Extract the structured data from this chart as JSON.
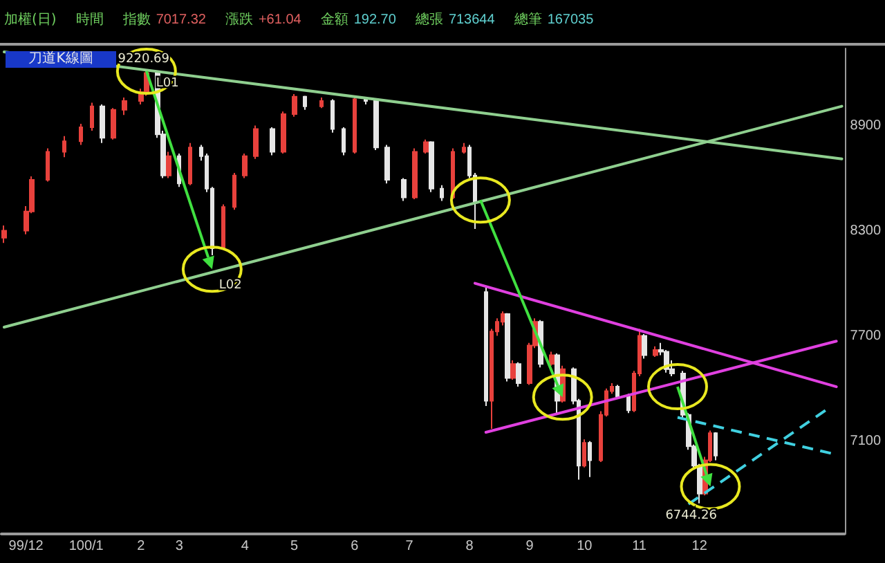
{
  "chart_data": {
    "type": "candlestick",
    "title": "刀道K線圖",
    "annotations": [
      "加權(日)",
      "時間",
      "指數 7017.32",
      "漲跌 +61.04",
      "金額 192.70",
      "總張 713644",
      "總筆 167035",
      {
        "text": "L01",
        "y": 9210
      },
      {
        "text": "L02",
        "y": 8080
      },
      {
        "text": "9220.69",
        "y": 9220.69
      },
      {
        "text": "6744.26",
        "y": 6744.26
      }
    ],
    "categories": [
      null,
      null,
      null,
      null,
      "99/12",
      null,
      null,
      null,
      null,
      null,
      null,
      null,
      null,
      null,
      null,
      "100/1",
      null,
      null,
      null,
      null,
      null,
      null,
      null,
      null,
      null,
      "2",
      null,
      null,
      null,
      null,
      null,
      null,
      "3",
      null,
      null,
      null,
      null,
      null,
      null,
      null,
      null,
      null,
      null,
      null,
      "4",
      null,
      null,
      null,
      null,
      null,
      null,
      null,
      null,
      "5",
      null,
      null,
      null,
      null,
      null,
      null,
      null,
      null,
      null,
      null,
      "6",
      null,
      null,
      null,
      null,
      null,
      null,
      null,
      null,
      null,
      "7",
      null,
      null,
      null,
      null,
      null,
      null,
      null,
      null,
      null,
      null,
      "8",
      null,
      null,
      null,
      null,
      null,
      null,
      null,
      null,
      null,
      null,
      "9",
      null,
      null,
      null,
      null,
      null,
      null,
      null,
      null,
      null,
      "10",
      null,
      null,
      null,
      null,
      null,
      null,
      null,
      null,
      null,
      "11",
      null,
      null,
      null,
      null,
      null,
      null,
      null,
      null,
      null,
      null,
      "12",
      null,
      null,
      null,
      null,
      null,
      null,
      null,
      null,
      null,
      null,
      null,
      null,
      null,
      null,
      null,
      null,
      null,
      null,
      null,
      null,
      null,
      null,
      null,
      null,
      null,
      null
    ],
    "ohlc": [
      [
        8260,
        8330,
        8230,
        8300
      ],
      null,
      null,
      null,
      [
        8300,
        8440,
        8280,
        8410
      ],
      [
        8410,
        8610,
        8400,
        8590
      ],
      null,
      null,
      [
        8590,
        8770,
        8580,
        8750
      ],
      null,
      null,
      [
        8750,
        8840,
        8720,
        8810
      ],
      null,
      null,
      [
        8810,
        8910,
        8790,
        8890
      ],
      null,
      [
        8890,
        9030,
        8870,
        9010
      ],
      null,
      [
        9010,
        9020,
        8800,
        8830
      ],
      null,
      [
        8830,
        9000,
        8820,
        8990
      ],
      null,
      [
        8990,
        9060,
        8960,
        9040
      ],
      null,
      null,
      [
        9040,
        9110,
        9020,
        9090
      ],
      [
        9090,
        9220.69,
        9070,
        9200
      ],
      null,
      [
        9200,
        9210,
        8830,
        8850
      ],
      [
        8850,
        8870,
        8600,
        8615
      ],
      [
        8615,
        8750,
        8600,
        8725
      ],
      null,
      [
        8725,
        8740,
        8550,
        8570
      ],
      null,
      [
        8570,
        8800,
        8560,
        8775
      ],
      null,
      [
        8775,
        8790,
        8700,
        8725
      ],
      [
        8725,
        8740,
        8520,
        8540
      ],
      [
        8540,
        8550,
        8160,
        8200
      ],
      null,
      [
        8200,
        8450,
        8190,
        8435
      ],
      null,
      [
        8435,
        8630,
        8420,
        8615
      ],
      null,
      [
        8615,
        8740,
        8600,
        8725
      ],
      null,
      [
        8725,
        8900,
        8710,
        8880
      ],
      null,
      null,
      [
        8880,
        8890,
        8730,
        8750
      ],
      null,
      [
        8750,
        8980,
        8740,
        8965
      ],
      null,
      [
        8965,
        9080,
        8950,
        9065
      ],
      null,
      [
        9065,
        9070,
        8990,
        9010
      ],
      null,
      null,
      [
        9010,
        9060,
        9000,
        9040
      ],
      null,
      [
        9040,
        9050,
        8860,
        8880
      ],
      null,
      [
        8880,
        8890,
        8730,
        8750
      ],
      null,
      [
        8750,
        9070,
        8740,
        9050
      ],
      null,
      [
        9050,
        9060,
        9020,
        9040
      ],
      null,
      [
        9040,
        9050,
        8760,
        8775
      ],
      null,
      [
        8775,
        8790,
        8570,
        8590
      ],
      null,
      null,
      [
        8590,
        8600,
        8470,
        8490
      ],
      null,
      [
        8490,
        8770,
        8480,
        8750
      ],
      null,
      [
        8750,
        8820,
        8740,
        8805
      ],
      [
        8805,
        8810,
        8520,
        8540
      ],
      null,
      [
        8540,
        8560,
        8470,
        8490
      ],
      null,
      [
        8490,
        8770,
        8480,
        8750
      ],
      null,
      [
        8750,
        8800,
        8740,
        8775
      ],
      [
        8775,
        8790,
        8600,
        8615
      ],
      [
        8615,
        8630,
        8310,
        8460
      ],
      null,
      [
        7950,
        7975,
        7300,
        7330
      ],
      [
        7330,
        7740,
        7170,
        7725
      ],
      [
        7725,
        7800,
        7700,
        7780
      ],
      [
        7780,
        7840,
        7760,
        7825
      ],
      [
        7825,
        7830,
        7440,
        7460
      ],
      [
        7460,
        7560,
        7450,
        7540
      ],
      [
        7540,
        7550,
        7410,
        7430
      ],
      null,
      [
        7430,
        7660,
        7420,
        7645
      ],
      [
        7645,
        7800,
        7630,
        7780
      ],
      [
        7780,
        7790,
        7520,
        7540
      ],
      null,
      [
        7540,
        7610,
        7530,
        7590
      ],
      [
        7590,
        7600,
        7250,
        7330
      ],
      [
        7330,
        7530,
        7320,
        7510
      ],
      null,
      [
        7510,
        7520,
        7310,
        7330
      ],
      [
        7330,
        7340,
        6880,
        6960
      ],
      [
        6960,
        7110,
        6950,
        7090
      ],
      [
        7090,
        7100,
        6895,
        6990
      ],
      null,
      [
        6990,
        7270,
        6980,
        7250
      ],
      [
        7250,
        7400,
        7240,
        7385
      ],
      [
        7385,
        7430,
        7370,
        7410
      ],
      [
        7410,
        7420,
        7340,
        7355
      ],
      null,
      [
        7355,
        7370,
        7260,
        7275
      ],
      [
        7275,
        7500,
        7265,
        7485
      ],
      [
        7485,
        7740,
        7470,
        7700
      ],
      [
        7700,
        7710,
        7570,
        7590
      ],
      null,
      [
        7590,
        7640,
        7580,
        7620
      ],
      [
        7620,
        7660,
        7590,
        7610
      ],
      [
        7610,
        7620,
        7490,
        7510
      ],
      [
        7510,
        7560,
        7470,
        7485
      ],
      null,
      [
        7485,
        7500,
        7230,
        7250
      ],
      [
        7250,
        7260,
        7050,
        7070
      ],
      [
        7070,
        7080,
        6940,
        6960
      ],
      [
        6960,
        6970,
        6744.26,
        6800
      ],
      [
        6800,
        7010,
        6790,
        6990
      ],
      [
        6990,
        7160,
        6980,
        7145
      ],
      [
        7145,
        7150,
        6990,
        7017.32
      ],
      null,
      null,
      null,
      null,
      null,
      null,
      null,
      null,
      null,
      null,
      null,
      null,
      null,
      null,
      null,
      null,
      null,
      null,
      null,
      null,
      null,
      null,
      null
    ],
    "colors": [
      "#e8413c",
      null,
      null,
      null,
      "#e8413c",
      "#e8413c",
      null,
      null,
      "#e8413c",
      null,
      null,
      "#e8413c",
      null,
      null,
      "#e8413c",
      null,
      "#e8413c",
      null,
      "#e6e6e6",
      null,
      "#e8413c",
      null,
      "#e8413c",
      null,
      null,
      "#e8413c",
      "#e8413c",
      null,
      "#e6e6e6",
      "#e6e6e6",
      "#e8413c",
      null,
      "#e6e6e6",
      null,
      "#e8413c",
      null,
      "#e6e6e6",
      "#e6e6e6",
      "#e6e6e6",
      null,
      "#e8413c",
      null,
      "#e8413c",
      null,
      "#e8413c",
      null,
      "#e8413c",
      null,
      null,
      "#e6e6e6",
      null,
      "#e8413c",
      null,
      "#e8413c",
      null,
      "#e6e6e6",
      null,
      null,
      "#e8413c",
      null,
      "#e6e6e6",
      null,
      "#e6e6e6",
      null,
      "#e8413c",
      null,
      "#e6e6e6",
      null,
      "#e6e6e6",
      null,
      "#e6e6e6",
      null,
      null,
      "#e6e6e6",
      null,
      "#e8413c",
      null,
      "#e8413c",
      "#e6e6e6",
      null,
      "#e6e6e6",
      null,
      "#e8413c",
      null,
      "#e8413c",
      "#e6e6e6",
      "#e6e6e6",
      null,
      "#e6e6e6",
      "#e8413c",
      "#e8413c",
      "#e8413c",
      "#e6e6e6",
      "#e8413c",
      "#e6e6e6",
      null,
      "#e8413c",
      "#e8413c",
      "#e6e6e6",
      null,
      "#e8413c",
      "#e6e6e6",
      "#e8413c",
      null,
      "#e6e6e6",
      "#e6e6e6",
      "#e8413c",
      "#e6e6e6",
      null,
      "#e8413c",
      "#e8413c",
      "#e8413c",
      "#e6e6e6",
      null,
      "#e6e6e6",
      "#e8413c",
      "#e8413c",
      "#e6e6e6",
      null,
      "#e8413c",
      "#e6e6e6",
      "#e6e6e6",
      "#e6e6e6",
      null,
      "#e6e6e6",
      "#e6e6e6",
      "#e6e6e6",
      "#e6e6e6",
      "#e8413c",
      "#e8413c",
      "#e6e6e6",
      null,
      null,
      null,
      null,
      null,
      null,
      null,
      null,
      null,
      null,
      null,
      null,
      null,
      null,
      null,
      null,
      null,
      null,
      null,
      null,
      null,
      null,
      null
    ],
    "series": [
      {
        "type": "line",
        "color": "#8fcf8f",
        "line_style": "solid",
        "values": [
          9320,
          null,
          null,
          null,
          null,
          null,
          null,
          null,
          null,
          null,
          null,
          null,
          null,
          null,
          null,
          null,
          null,
          null,
          null,
          null,
          null,
          null,
          null,
          null,
          null,
          null,
          null,
          null,
          null,
          null,
          null,
          null,
          null,
          null,
          null,
          null,
          null,
          null,
          null,
          null,
          null,
          null,
          null,
          null,
          null,
          null,
          null,
          null,
          null,
          null,
          null,
          null,
          null,
          null,
          null,
          null,
          null,
          null,
          null,
          null,
          null,
          null,
          null,
          null,
          null,
          null,
          null,
          null,
          null,
          null,
          null,
          null,
          null,
          null,
          null,
          null,
          null,
          null,
          null,
          null,
          null,
          null,
          null,
          null,
          null,
          null,
          null,
          null,
          null,
          null,
          null,
          null,
          null,
          null,
          null,
          null,
          null,
          null,
          null,
          null,
          null,
          null,
          null,
          null,
          null,
          null,
          null,
          null,
          null,
          null,
          null,
          null,
          null,
          null,
          null,
          null,
          null,
          null,
          null,
          null,
          null,
          null,
          null,
          null,
          null,
          null,
          null,
          null,
          null,
          null,
          null,
          null,
          null,
          null,
          null,
          null,
          null,
          null,
          null,
          null,
          null,
          null,
          null,
          null,
          null,
          null,
          null,
          null,
          null,
          null,
          null,
          null,
          null,
          8710
        ]
      },
      {
        "type": "line",
        "color": "#8fcf8f",
        "line_style": "solid",
        "values": [
          7750,
          null,
          null,
          null,
          null,
          null,
          null,
          null,
          null,
          null,
          null,
          null,
          null,
          null,
          null,
          null,
          null,
          null,
          null,
          null,
          null,
          null,
          null,
          null,
          null,
          null,
          null,
          null,
          null,
          null,
          null,
          null,
          null,
          null,
          null,
          null,
          null,
          null,
          null,
          null,
          null,
          null,
          null,
          null,
          null,
          null,
          null,
          null,
          null,
          null,
          null,
          null,
          null,
          null,
          null,
          null,
          null,
          null,
          null,
          null,
          null,
          null,
          null,
          null,
          null,
          null,
          null,
          null,
          null,
          null,
          null,
          null,
          null,
          null,
          null,
          null,
          null,
          null,
          null,
          null,
          null,
          null,
          null,
          null,
          null,
          null,
          null,
          null,
          null,
          null,
          null,
          null,
          null,
          null,
          null,
          null,
          null,
          null,
          null,
          null,
          null,
          null,
          null,
          null,
          null,
          null,
          null,
          null,
          null,
          null,
          null,
          null,
          null,
          null,
          null,
          null,
          null,
          null,
          null,
          null,
          null,
          null,
          null,
          null,
          null,
          null,
          null,
          null,
          null,
          null,
          null,
          null,
          null,
          null,
          null,
          null,
          null,
          null,
          null,
          null,
          null,
          null,
          null,
          null,
          null,
          null,
          null,
          null,
          null,
          null,
          null,
          null,
          null,
          9010
        ]
      },
      {
        "type": "line",
        "color": "#e040e0",
        "line_style": "solid",
        "values": [
          null,
          null,
          null,
          null,
          null,
          null,
          null,
          null,
          null,
          null,
          null,
          null,
          null,
          null,
          null,
          null,
          null,
          null,
          null,
          null,
          null,
          null,
          null,
          null,
          null,
          null,
          null,
          null,
          null,
          null,
          null,
          null,
          null,
          null,
          null,
          null,
          null,
          null,
          null,
          null,
          null,
          null,
          null,
          null,
          null,
          null,
          null,
          null,
          null,
          null,
          null,
          null,
          null,
          null,
          null,
          null,
          null,
          null,
          null,
          null,
          null,
          null,
          null,
          null,
          null,
          null,
          null,
          null,
          null,
          null,
          null,
          null,
          null,
          null,
          null,
          null,
          null,
          null,
          null,
          null,
          null,
          null,
          null,
          null,
          null,
          null,
          8000,
          null,
          null,
          null,
          null,
          null,
          null,
          null,
          null,
          null,
          null,
          null,
          null,
          null,
          null,
          null,
          null,
          null,
          null,
          null,
          null,
          null,
          null,
          null,
          null,
          null,
          null,
          null,
          null,
          null,
          null,
          null,
          null,
          null,
          null,
          null,
          null,
          null,
          null,
          null,
          null,
          null,
          null,
          null,
          null,
          null,
          null,
          null,
          null,
          null,
          null,
          null,
          null,
          null,
          null,
          null,
          null,
          null,
          null,
          null,
          null,
          null,
          null,
          null,
          null,
          null,
          7410,
          null
        ]
      },
      {
        "type": "line",
        "color": "#e040e0",
        "line_style": "solid",
        "values": [
          null,
          null,
          null,
          null,
          null,
          null,
          null,
          null,
          null,
          null,
          null,
          null,
          null,
          null,
          null,
          null,
          null,
          null,
          null,
          null,
          null,
          null,
          null,
          null,
          null,
          null,
          null,
          null,
          null,
          null,
          null,
          null,
          null,
          null,
          null,
          null,
          null,
          null,
          null,
          null,
          null,
          null,
          null,
          null,
          null,
          null,
          null,
          null,
          null,
          null,
          null,
          null,
          null,
          null,
          null,
          null,
          null,
          null,
          null,
          null,
          null,
          null,
          null,
          null,
          null,
          null,
          null,
          null,
          null,
          null,
          null,
          null,
          null,
          null,
          null,
          null,
          null,
          null,
          null,
          null,
          null,
          null,
          null,
          null,
          null,
          null,
          null,
          null,
          7150,
          null,
          null,
          null,
          null,
          null,
          null,
          null,
          null,
          null,
          null,
          null,
          null,
          null,
          null,
          null,
          null,
          null,
          null,
          null,
          null,
          null,
          null,
          null,
          null,
          null,
          null,
          null,
          null,
          null,
          null,
          null,
          null,
          null,
          null,
          null,
          null,
          null,
          null,
          null,
          null,
          null,
          null,
          null,
          null,
          null,
          null,
          null,
          null,
          null,
          null,
          null,
          null,
          null,
          null,
          null,
          null,
          null,
          null,
          null,
          null,
          null,
          null,
          null,
          7670,
          null
        ]
      },
      {
        "type": "line",
        "color": "#40d0e0",
        "line_style": "dashed",
        "values": [
          null,
          null,
          null,
          null,
          null,
          null,
          null,
          null,
          null,
          null,
          null,
          null,
          null,
          null,
          null,
          null,
          null,
          null,
          null,
          null,
          null,
          null,
          null,
          null,
          null,
          null,
          null,
          null,
          null,
          null,
          null,
          null,
          null,
          null,
          null,
          null,
          null,
          null,
          null,
          null,
          null,
          null,
          null,
          null,
          null,
          null,
          null,
          null,
          null,
          null,
          null,
          null,
          null,
          null,
          null,
          null,
          null,
          null,
          null,
          null,
          null,
          null,
          null,
          null,
          null,
          null,
          null,
          null,
          null,
          null,
          null,
          null,
          null,
          null,
          null,
          null,
          null,
          null,
          null,
          null,
          null,
          null,
          null,
          null,
          null,
          null,
          null,
          null,
          null,
          null,
          null,
          null,
          null,
          null,
          null,
          null,
          null,
          null,
          null,
          null,
          null,
          null,
          null,
          null,
          null,
          null,
          null,
          null,
          null,
          null,
          null,
          null,
          null,
          null,
          null,
          null,
          null,
          null,
          null,
          null,
          null,
          null,
          null,
          7235,
          null,
          null,
          null,
          null,
          null,
          null,
          null,
          null,
          null,
          null,
          null,
          null,
          null,
          null,
          null,
          null,
          null,
          null,
          null,
          null,
          null,
          null,
          null,
          null,
          null,
          null,
          null,
          7030,
          null,
          null
        ]
      },
      {
        "type": "line",
        "color": "#40d0e0",
        "line_style": "dashed",
        "values": [
          null,
          null,
          null,
          null,
          null,
          null,
          null,
          null,
          null,
          null,
          null,
          null,
          null,
          null,
          null,
          null,
          null,
          null,
          null,
          null,
          null,
          null,
          null,
          null,
          null,
          null,
          null,
          null,
          null,
          null,
          null,
          null,
          null,
          null,
          null,
          null,
          null,
          null,
          null,
          null,
          null,
          null,
          null,
          null,
          null,
          null,
          null,
          null,
          null,
          null,
          null,
          null,
          null,
          null,
          null,
          null,
          null,
          null,
          null,
          null,
          null,
          null,
          null,
          null,
          null,
          null,
          null,
          null,
          null,
          null,
          null,
          null,
          null,
          null,
          null,
          null,
          null,
          null,
          null,
          null,
          null,
          null,
          null,
          null,
          null,
          null,
          null,
          null,
          null,
          null,
          null,
          null,
          null,
          null,
          null,
          null,
          null,
          null,
          null,
          null,
          null,
          null,
          null,
          null,
          null,
          null,
          null,
          null,
          null,
          null,
          null,
          null,
          null,
          null,
          null,
          null,
          null,
          null,
          null,
          null,
          null,
          null,
          null,
          null,
          null,
          6740,
          null,
          null,
          null,
          null,
          null,
          null,
          null,
          null,
          null,
          null,
          null,
          null,
          null,
          null,
          null,
          null,
          null,
          null,
          null,
          null,
          null,
          null,
          null,
          null,
          7275,
          null,
          null,
          null
        ]
      }
    ],
    "ylim": [
      6570,
      9340
    ],
    "yticks": [
      7100,
      7700,
      8300,
      8900
    ]
  }
}
